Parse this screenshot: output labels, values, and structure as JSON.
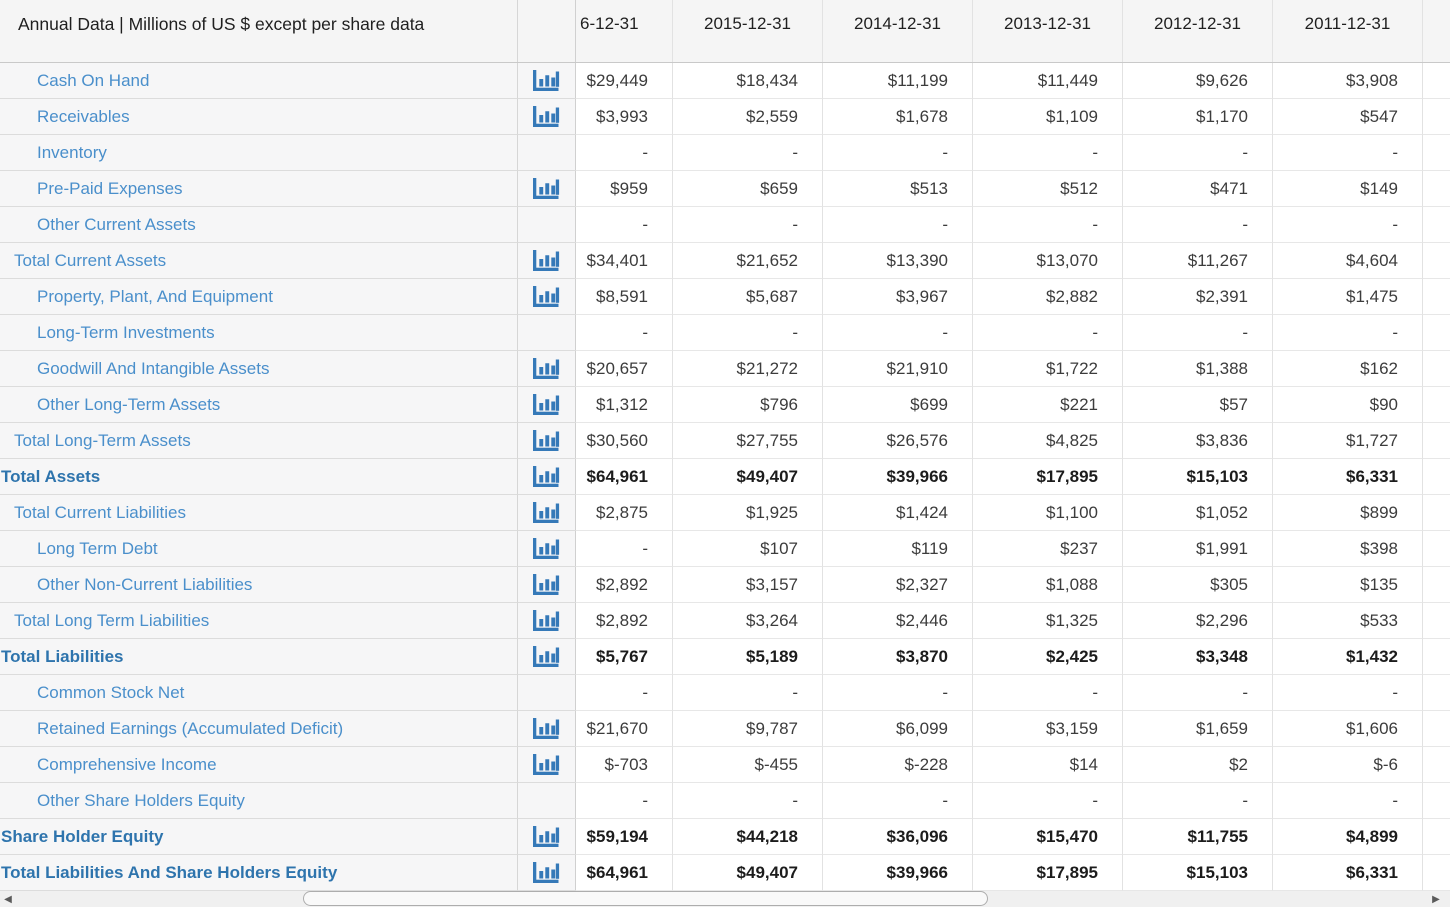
{
  "header": {
    "title": "Annual Data | Millions of US $ except per share data",
    "columns": [
      "6-12-31",
      "2015-12-31",
      "2014-12-31",
      "2013-12-31",
      "2012-12-31",
      "2011-12-31"
    ]
  },
  "rows": [
    {
      "label": "Cash On Hand",
      "indent": 2,
      "bold": false,
      "chart": true,
      "values": [
        "$29,449",
        "$18,434",
        "$11,199",
        "$11,449",
        "$9,626",
        "$3,908"
      ]
    },
    {
      "label": "Receivables",
      "indent": 2,
      "bold": false,
      "chart": true,
      "values": [
        "$3,993",
        "$2,559",
        "$1,678",
        "$1,109",
        "$1,170",
        "$547"
      ]
    },
    {
      "label": "Inventory",
      "indent": 2,
      "bold": false,
      "chart": false,
      "values": [
        "-",
        "-",
        "-",
        "-",
        "-",
        "-"
      ]
    },
    {
      "label": "Pre-Paid Expenses",
      "indent": 2,
      "bold": false,
      "chart": true,
      "values": [
        "$959",
        "$659",
        "$513",
        "$512",
        "$471",
        "$149"
      ]
    },
    {
      "label": "Other Current Assets",
      "indent": 2,
      "bold": false,
      "chart": false,
      "values": [
        "-",
        "-",
        "-",
        "-",
        "-",
        "-"
      ]
    },
    {
      "label": "Total Current Assets",
      "indent": 1,
      "bold": false,
      "chart": true,
      "values": [
        "$34,401",
        "$21,652",
        "$13,390",
        "$13,070",
        "$11,267",
        "$4,604"
      ]
    },
    {
      "label": "Property, Plant, And Equipment",
      "indent": 2,
      "bold": false,
      "chart": true,
      "values": [
        "$8,591",
        "$5,687",
        "$3,967",
        "$2,882",
        "$2,391",
        "$1,475"
      ]
    },
    {
      "label": "Long-Term Investments",
      "indent": 2,
      "bold": false,
      "chart": false,
      "values": [
        "-",
        "-",
        "-",
        "-",
        "-",
        "-"
      ]
    },
    {
      "label": "Goodwill And Intangible Assets",
      "indent": 2,
      "bold": false,
      "chart": true,
      "values": [
        "$20,657",
        "$21,272",
        "$21,910",
        "$1,722",
        "$1,388",
        "$162"
      ]
    },
    {
      "label": "Other Long-Term Assets",
      "indent": 2,
      "bold": false,
      "chart": true,
      "values": [
        "$1,312",
        "$796",
        "$699",
        "$221",
        "$57",
        "$90"
      ]
    },
    {
      "label": "Total Long-Term Assets",
      "indent": 1,
      "bold": false,
      "chart": true,
      "values": [
        "$30,560",
        "$27,755",
        "$26,576",
        "$4,825",
        "$3,836",
        "$1,727"
      ]
    },
    {
      "label": "Total Assets",
      "indent": 0,
      "bold": true,
      "chart": true,
      "values": [
        "$64,961",
        "$49,407",
        "$39,966",
        "$17,895",
        "$15,103",
        "$6,331"
      ]
    },
    {
      "label": "Total Current Liabilities",
      "indent": 1,
      "bold": false,
      "chart": true,
      "values": [
        "$2,875",
        "$1,925",
        "$1,424",
        "$1,100",
        "$1,052",
        "$899"
      ]
    },
    {
      "label": "Long Term Debt",
      "indent": 2,
      "bold": false,
      "chart": true,
      "values": [
        "-",
        "$107",
        "$119",
        "$237",
        "$1,991",
        "$398"
      ]
    },
    {
      "label": "Other Non-Current Liabilities",
      "indent": 2,
      "bold": false,
      "chart": true,
      "values": [
        "$2,892",
        "$3,157",
        "$2,327",
        "$1,088",
        "$305",
        "$135"
      ]
    },
    {
      "label": "Total Long Term Liabilities",
      "indent": 1,
      "bold": false,
      "chart": true,
      "values": [
        "$2,892",
        "$3,264",
        "$2,446",
        "$1,325",
        "$2,296",
        "$533"
      ]
    },
    {
      "label": "Total Liabilities",
      "indent": 0,
      "bold": true,
      "chart": true,
      "values": [
        "$5,767",
        "$5,189",
        "$3,870",
        "$2,425",
        "$3,348",
        "$1,432"
      ]
    },
    {
      "label": "Common Stock Net",
      "indent": 2,
      "bold": false,
      "chart": false,
      "values": [
        "-",
        "-",
        "-",
        "-",
        "-",
        "-"
      ]
    },
    {
      "label": "Retained Earnings (Accumulated Deficit)",
      "indent": 2,
      "bold": false,
      "chart": true,
      "values": [
        "$21,670",
        "$9,787",
        "$6,099",
        "$3,159",
        "$1,659",
        "$1,606"
      ]
    },
    {
      "label": "Comprehensive Income",
      "indent": 2,
      "bold": false,
      "chart": true,
      "values": [
        "$-703",
        "$-455",
        "$-228",
        "$14",
        "$2",
        "$-6"
      ]
    },
    {
      "label": "Other Share Holders Equity",
      "indent": 2,
      "bold": false,
      "chart": false,
      "values": [
        "-",
        "-",
        "-",
        "-",
        "-",
        "-"
      ]
    },
    {
      "label": "Share Holder Equity",
      "indent": 0,
      "bold": true,
      "chart": true,
      "values": [
        "$59,194",
        "$44,218",
        "$36,096",
        "$15,470",
        "$11,755",
        "$4,899"
      ]
    },
    {
      "label": "Total Liabilities And Share Holders Equity",
      "indent": 0,
      "bold": true,
      "chart": true,
      "values": [
        "$64,961",
        "$49,407",
        "$39,966",
        "$17,895",
        "$15,103",
        "$6,331"
      ]
    }
  ],
  "icons": {
    "chart_icon_name": "bar-chart-icon",
    "scroll_left_glyph": "◀",
    "scroll_right_glyph": "▶"
  },
  "colors": {
    "icon_blue": "#3579b8",
    "link_blue": "#4a8fcb",
    "link_bold_blue": "#2e74ad",
    "header_bg": "#f5f5f5",
    "pinned_bg": "#f6f6f7"
  }
}
